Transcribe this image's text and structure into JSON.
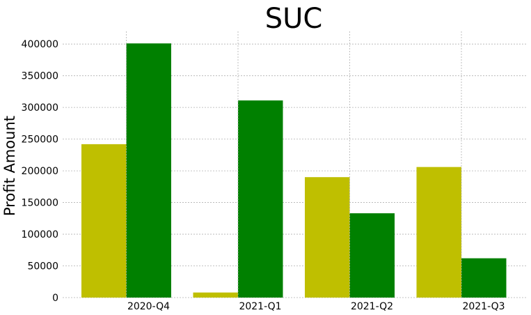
{
  "chart_data": {
    "type": "bar",
    "title": "SUC",
    "xlabel": "",
    "ylabel": "Profit Amount",
    "categories": [
      "2020-Q4",
      "2021-Q1",
      "2021-Q2",
      "2021-Q3"
    ],
    "series": [
      {
        "values": [
          242000,
          8000,
          190000,
          206000
        ],
        "color": "#bfbf00"
      },
      {
        "values": [
          401000,
          311000,
          133000,
          62000
        ],
        "color": "#008000"
      }
    ],
    "yticks": [
      0,
      50000,
      100000,
      150000,
      200000,
      250000,
      300000,
      350000,
      400000
    ],
    "ylim": [
      0,
      420000
    ],
    "grid": true,
    "legend": "none"
  }
}
